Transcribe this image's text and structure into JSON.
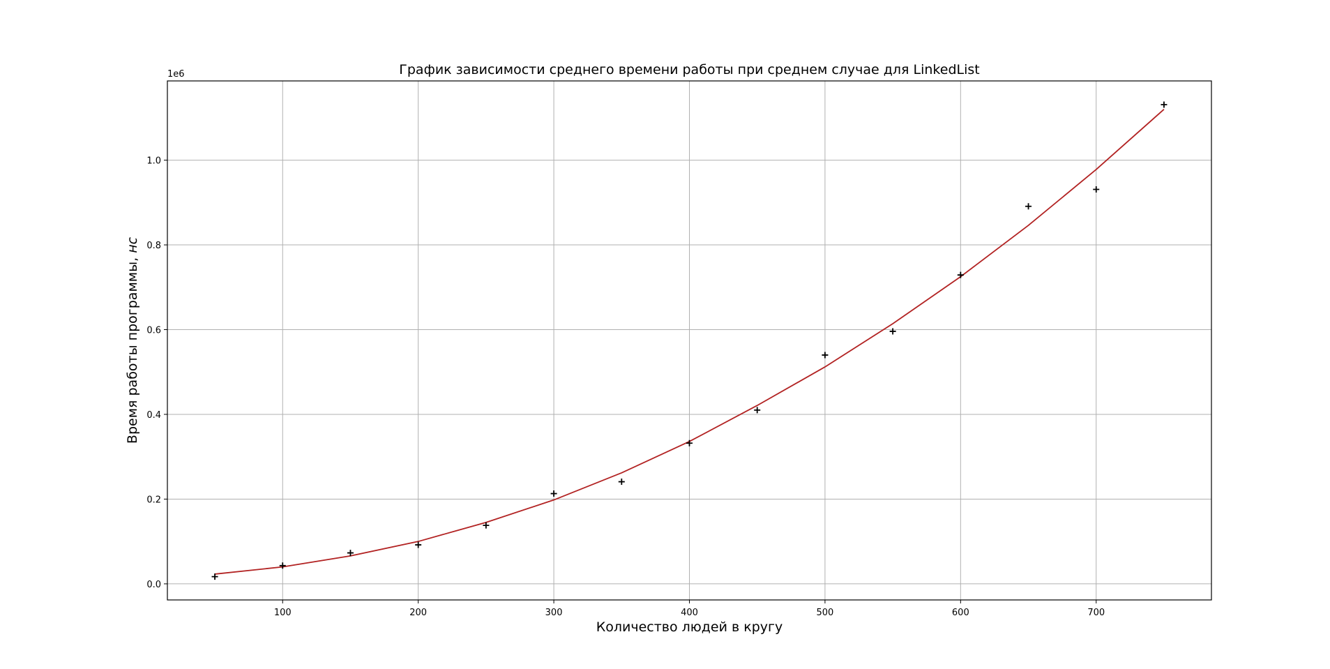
{
  "chart_data": {
    "type": "line",
    "title": "График зависимости среднего времени работы при среднем случае для LinkedList",
    "xlabel": "Количество людей в кругу",
    "ylabel_main": "Время работы программы, ",
    "ylabel_italic": "нс",
    "y_offset_text": "1e6",
    "xlim": [
      15,
      785
    ],
    "ylim": [
      -0.038,
      1.187
    ],
    "x_ticks": [
      100,
      200,
      300,
      400,
      500,
      600,
      700
    ],
    "y_ticks": [
      0.0,
      0.2,
      0.4,
      0.6,
      0.8,
      1.0
    ],
    "grid": true,
    "series": [
      {
        "kind": "scatter",
        "marker": "plus",
        "color": "#000000",
        "x": [
          50,
          100,
          150,
          200,
          250,
          300,
          350,
          400,
          450,
          500,
          550,
          600,
          650,
          700,
          750
        ],
        "y": [
          0.017,
          0.043,
          0.073,
          0.092,
          0.138,
          0.213,
          0.241,
          0.332,
          0.41,
          0.54,
          0.596,
          0.729,
          0.891,
          0.931,
          1.131
        ]
      },
      {
        "kind": "line",
        "color": "#b22222",
        "x": [
          50,
          100,
          150,
          200,
          250,
          300,
          350,
          400,
          450,
          500,
          550,
          600,
          650,
          700,
          750
        ],
        "y": [
          0.023,
          0.04,
          0.066,
          0.1,
          0.145,
          0.198,
          0.262,
          0.336,
          0.421,
          0.512,
          0.614,
          0.725,
          0.846,
          0.978,
          1.12
        ]
      }
    ]
  }
}
